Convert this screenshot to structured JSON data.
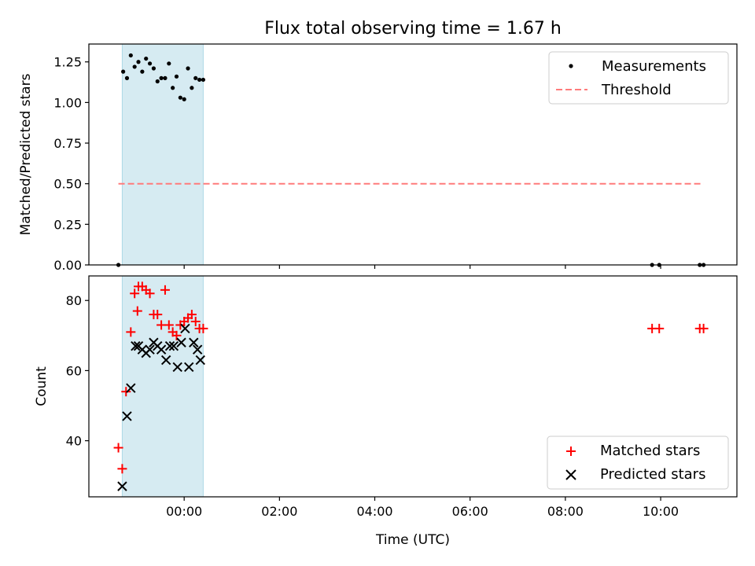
{
  "title": "Flux total observing time = 1.67 h",
  "chart_data": [
    {
      "type": "scatter",
      "title": "Flux total observing time = 1.67 h",
      "xlabel": "",
      "ylabel": "Matched/Predicted stars",
      "xlim": [
        -2.0,
        11.6
      ],
      "ylim": [
        0.0,
        1.36
      ],
      "yticks": [
        0.0,
        0.25,
        0.5,
        0.75,
        1.0,
        1.25
      ],
      "ytick_labels": [
        "0.00",
        "0.25",
        "0.50",
        "0.75",
        "1.00",
        "1.25"
      ],
      "xticks": [
        0,
        2,
        4,
        6,
        8,
        10
      ],
      "shaded_region": {
        "x_start": -1.3,
        "x_end": 0.4,
        "color": "#add8e6"
      },
      "legend": {
        "position": "upper right",
        "entries": [
          "Measurements",
          "Threshold"
        ]
      },
      "series": [
        {
          "name": "Measurements",
          "marker": "dot",
          "color": "#000000",
          "x": [
            -1.38,
            -1.28,
            -1.2,
            -1.12,
            -1.04,
            -0.96,
            -0.88,
            -0.8,
            -0.72,
            -0.64,
            -0.56,
            -0.48,
            -0.4,
            -0.32,
            -0.24,
            -0.16,
            -0.08,
            0.0,
            0.08,
            0.16,
            0.24,
            0.32,
            0.4,
            9.82,
            9.97,
            10.82,
            10.9
          ],
          "y": [
            0.0,
            1.19,
            1.15,
            1.29,
            1.22,
            1.25,
            1.19,
            1.27,
            1.24,
            1.21,
            1.13,
            1.15,
            1.15,
            1.24,
            1.09,
            1.16,
            1.03,
            1.02,
            1.21,
            1.09,
            1.15,
            1.14,
            1.14,
            0.0,
            0.0,
            0.0,
            0.0
          ]
        },
        {
          "name": "Threshold",
          "style": "dashed",
          "color": "#ff7b7b",
          "x": [
            -1.38,
            10.9
          ],
          "y": [
            0.5,
            0.5
          ]
        }
      ]
    },
    {
      "type": "scatter",
      "xlabel": "Time (UTC)",
      "ylabel": "Count",
      "xlim": [
        -2.0,
        11.6
      ],
      "ylim": [
        24,
        87
      ],
      "yticks": [
        40,
        60,
        80
      ],
      "ytick_labels": [
        "40",
        "60",
        "80"
      ],
      "xticks": [
        0,
        2,
        4,
        6,
        8,
        10
      ],
      "xtick_labels": [
        "00:00",
        "02:00",
        "04:00",
        "06:00",
        "08:00",
        "10:00"
      ],
      "shaded_region": {
        "x_start": -1.3,
        "x_end": 0.4,
        "color": "#add8e6"
      },
      "legend": {
        "position": "lower right",
        "entries": [
          "Matched stars",
          "Predicted stars"
        ]
      },
      "series": [
        {
          "name": "Matched stars",
          "marker": "plus",
          "color": "#ff0000",
          "x": [
            -1.38,
            -1.3,
            -1.22,
            -1.12,
            -1.04,
            -0.96,
            -0.88,
            -0.8,
            -0.72,
            -0.64,
            -0.56,
            -0.48,
            -0.4,
            -0.32,
            -0.24,
            -0.16,
            -0.08,
            0.0,
            0.08,
            0.16,
            0.24,
            0.32,
            0.4,
            9.82,
            9.97,
            10.82,
            10.9,
            -0.98
          ],
          "y": [
            38,
            32,
            54,
            71,
            82,
            84,
            84,
            83,
            82,
            76,
            76,
            73,
            83,
            73,
            71,
            70,
            73,
            74,
            75,
            76,
            74,
            72,
            72,
            72,
            72,
            72,
            72,
            77
          ]
        },
        {
          "name": "Predicted stars",
          "marker": "x",
          "color": "#000000",
          "x": [
            -1.3,
            -1.2,
            -1.12,
            -1.02,
            -0.96,
            -0.88,
            -0.8,
            -0.72,
            -0.64,
            -0.56,
            -0.48,
            -0.38,
            -0.3,
            -0.22,
            -0.14,
            -0.06,
            0.02,
            0.1,
            0.2,
            0.28,
            0.34
          ],
          "y": [
            27,
            47,
            55,
            67,
            67,
            66,
            65,
            66,
            68,
            67,
            66,
            63,
            67,
            67,
            61,
            68,
            72,
            61,
            68,
            66,
            63
          ]
        }
      ]
    }
  ],
  "legend_labels": {
    "measurements": "Measurements",
    "threshold": "Threshold",
    "matched": "Matched stars",
    "predicted": "Predicted stars"
  }
}
